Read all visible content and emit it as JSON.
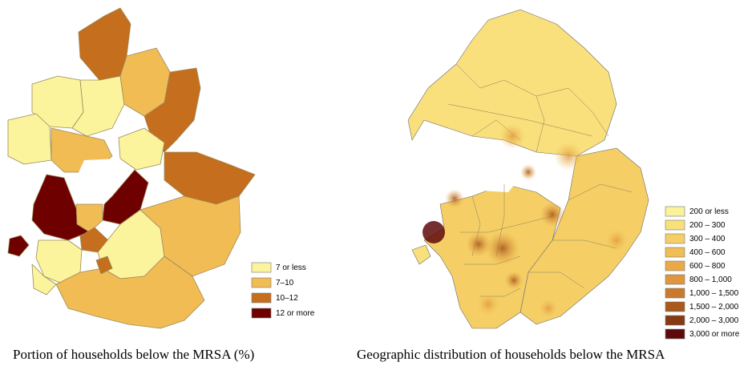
{
  "left_map": {
    "caption": "Portion of households below the MRSA (%)",
    "legend": [
      {
        "label": "7 or less",
        "color": "#fcf49c"
      },
      {
        "label": "7–10",
        "color": "#f2bc55"
      },
      {
        "label": "10–12",
        "color": "#c46e1e"
      },
      {
        "label": "12 or more",
        "color": "#6e0000"
      }
    ]
  },
  "right_map": {
    "caption": "Geographic distribution of households below the MRSA",
    "legend": [
      {
        "label": "200 or less",
        "color": "#fbf29a"
      },
      {
        "label": "200 – 300",
        "color": "#f8e07a"
      },
      {
        "label": "300 – 400",
        "color": "#f5cf66"
      },
      {
        "label": "400 – 600",
        "color": "#f1bd55"
      },
      {
        "label": "600 – 800",
        "color": "#eaa947"
      },
      {
        "label": "800 – 1,000",
        "color": "#df963e"
      },
      {
        "label": "1,000 – 1,500",
        "color": "#c97a2c"
      },
      {
        "label": "1,500 – 2,000",
        "color": "#a95a1d"
      },
      {
        "label": "2,000 – 3,000",
        "color": "#853a12"
      },
      {
        "label": "3,000 or more",
        "color": "#5e0a0a"
      }
    ]
  }
}
